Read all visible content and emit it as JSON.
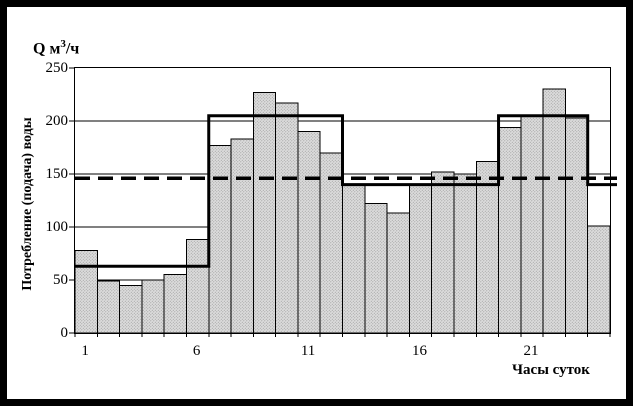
{
  "frame": {
    "border_color": "#000000",
    "background": "#ffffff"
  },
  "chart_data": {
    "type": "bar",
    "title": "",
    "unit_label": {
      "prefix": "Q м",
      "sup": "3",
      "suffix": "/ч"
    },
    "ylabel": "Потребление (подача) воды",
    "xlabel": "Часы суток",
    "categories": [
      1,
      2,
      3,
      4,
      5,
      6,
      7,
      8,
      9,
      10,
      11,
      12,
      13,
      14,
      15,
      16,
      17,
      18,
      19,
      20,
      21,
      22,
      23,
      24
    ],
    "series": [
      {
        "name": "consumption-bars",
        "type": "bar",
        "values": [
          78,
          49,
          45,
          50,
          55,
          88,
          177,
          183,
          227,
          217,
          190,
          170,
          140,
          122,
          113,
          140,
          152,
          150,
          162,
          194,
          205,
          230,
          203,
          101
        ]
      },
      {
        "name": "supply-step-line",
        "type": "step",
        "segments": [
          {
            "from_hour": 0,
            "to_hour": 6,
            "value": 63
          },
          {
            "from_hour": 6,
            "to_hour": 12,
            "value": 205
          },
          {
            "from_hour": 12,
            "to_hour": 19,
            "value": 140
          },
          {
            "from_hour": 19,
            "to_hour": 23,
            "value": 205
          },
          {
            "from_hour": 23,
            "to_hour": 24,
            "value": 140
          }
        ]
      },
      {
        "name": "average-dashed-line",
        "type": "dashed-hline",
        "value": 146
      }
    ],
    "y_ticks": [
      0,
      50,
      100,
      150,
      200,
      250
    ],
    "x_tick_hours": [
      1,
      6,
      11,
      16,
      21
    ],
    "ylim": [
      0,
      250
    ],
    "xlim_hours": [
      0,
      24
    ],
    "grid": "horizontal",
    "legend": "none",
    "colors": {
      "bar_fill": "#dcdcdc",
      "bar_dot": "#9c9c9c",
      "bar_border": "#000000",
      "line": "#000000",
      "grid": "#000000"
    }
  }
}
